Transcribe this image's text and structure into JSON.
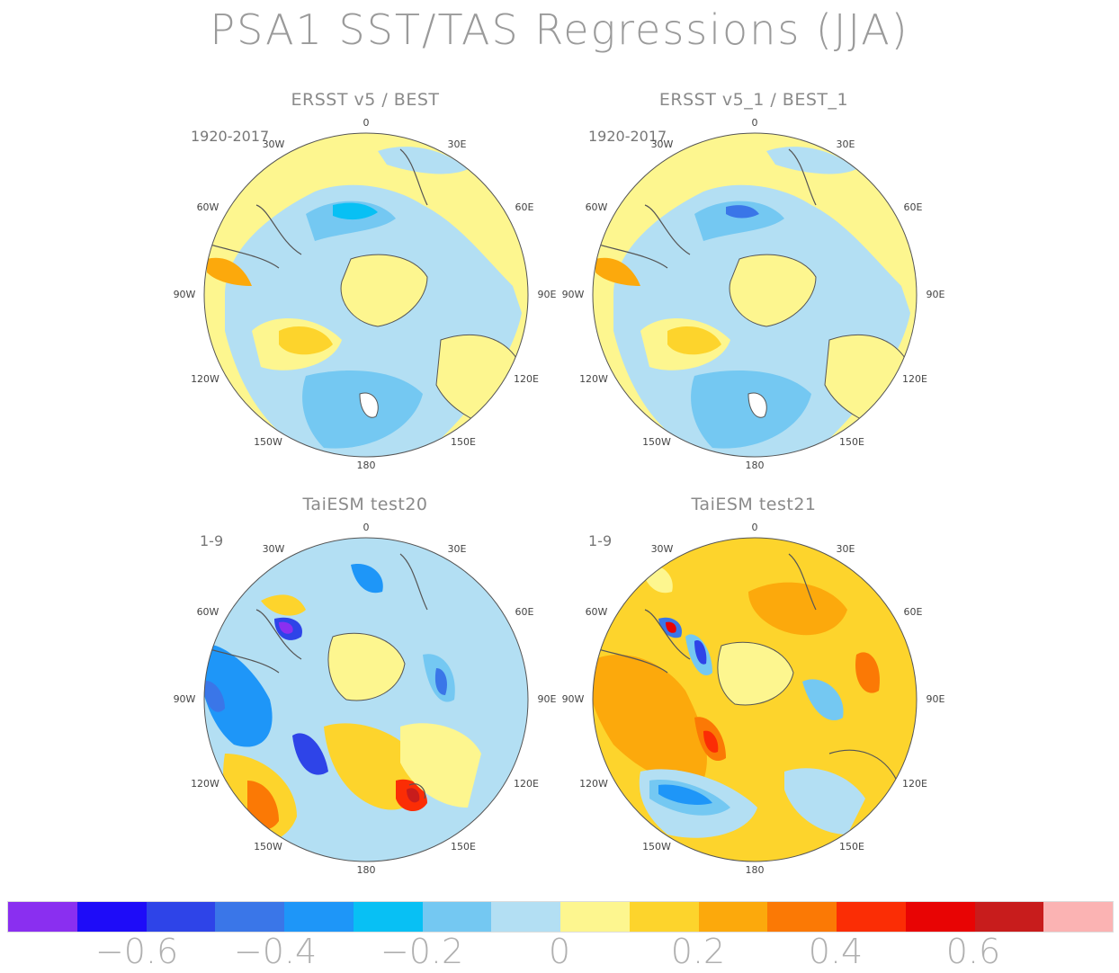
{
  "title": "PSA1 SST/TAS Regressions (JJA)",
  "panels": [
    {
      "title": "ERSST v5 / BEST",
      "period": "1920-2017"
    },
    {
      "title": "ERSST v5_1 / BEST_1",
      "period": "1920-2017"
    },
    {
      "title": "TaiESM test20",
      "period": "1-9"
    },
    {
      "title": "TaiESM test21",
      "period": "1-9"
    }
  ],
  "longitude_labels": [
    "0",
    "30E",
    "60E",
    "90E",
    "120E",
    "150E",
    "180",
    "150W",
    "120W",
    "90W",
    "60W",
    "30W"
  ],
  "colorbar": {
    "colors": [
      "#8a2ff0",
      "#1e0cf8",
      "#2e44e8",
      "#3a76e8",
      "#1e96f8",
      "#08c0f4",
      "#74c8f2",
      "#b3dff3",
      "#fdf68f",
      "#fdd42c",
      "#fca90c",
      "#fb7905",
      "#fb2d05",
      "#e80404",
      "#c81c1c",
      "#fbb3b3"
    ],
    "tick_labels": [
      "-0.6",
      "-0.4",
      "-0.2",
      "0",
      "0.2",
      "0.4",
      "0.6"
    ]
  },
  "land_color": "#ffffff",
  "coast_color": "#555555"
}
